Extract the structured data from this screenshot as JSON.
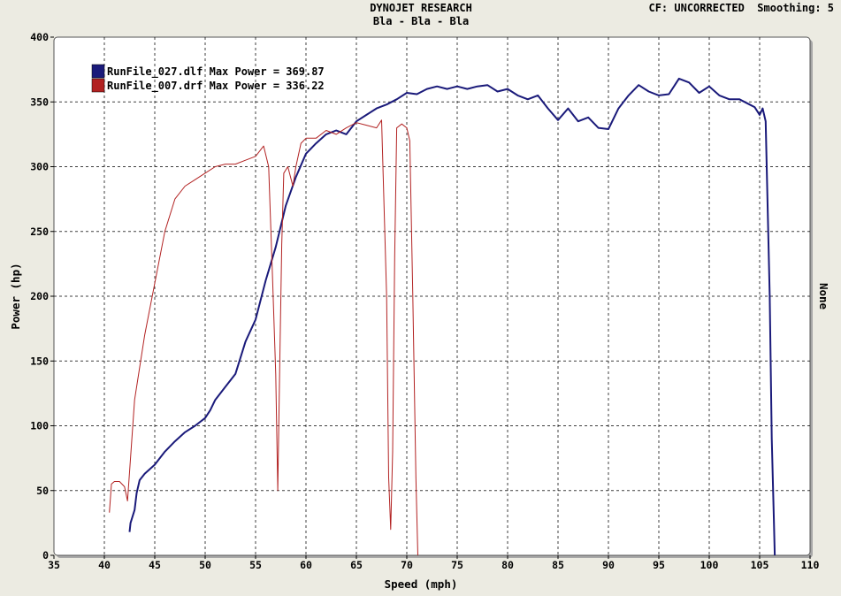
{
  "header": {
    "title": "DYNOJET RESEARCH",
    "subtitle": "Bla - Bla - Bla",
    "info": "CF: UNCORRECTED  Smoothing: 5"
  },
  "right_label": "None",
  "colors": {
    "series1": "#1a1a7a",
    "series2": "#b22222",
    "background": "#ecebe2",
    "plot": "#ffffff"
  },
  "chart_data": {
    "type": "line",
    "xlabel": "Speed (mph)",
    "ylabel": "Power (hp)",
    "xlim": [
      35,
      110
    ],
    "ylim": [
      0,
      400
    ],
    "xticks": [
      35,
      40,
      45,
      50,
      55,
      60,
      65,
      70,
      75,
      80,
      85,
      90,
      95,
      100,
      105,
      110
    ],
    "yticks": [
      0,
      50,
      100,
      150,
      200,
      250,
      300,
      350,
      400
    ],
    "grid": true,
    "legend_position": "top-left",
    "series": [
      {
        "name": "RunFile_027.dlf Max Power = 369.87",
        "color": "#1a1a7a",
        "x": [
          42.5,
          42.6,
          43.0,
          43.2,
          43.5,
          44.0,
          45.0,
          46.0,
          47.0,
          48.0,
          49.0,
          50.0,
          50.5,
          51.0,
          52.0,
          53.0,
          54.0,
          55.0,
          56.0,
          57.0,
          58.0,
          59.0,
          60.0,
          61.0,
          62.0,
          63.0,
          64.0,
          65.0,
          66.0,
          67.0,
          68.0,
          69.0,
          70.0,
          71.0,
          72.0,
          73.0,
          74.0,
          75.0,
          76.0,
          77.0,
          78.0,
          79.0,
          80.0,
          81.0,
          82.0,
          83.0,
          84.0,
          85.0,
          86.0,
          87.0,
          88.0,
          89.0,
          90.0,
          91.0,
          92.0,
          93.0,
          94.0,
          95.0,
          96.0,
          97.0,
          98.0,
          99.0,
          100.0,
          101.0,
          102.0,
          103.0,
          104.0,
          104.5,
          105.0,
          105.3,
          105.6,
          106.0,
          106.2,
          106.4,
          106.5
        ],
        "y": [
          18,
          25,
          35,
          48,
          58,
          63,
          70,
          80,
          88,
          95,
          100,
          106,
          112,
          120,
          130,
          140,
          165,
          182,
          212,
          238,
          270,
          292,
          310,
          318,
          325,
          328,
          325,
          335,
          340,
          345,
          348,
          352,
          357,
          356,
          360,
          362,
          360,
          362,
          360,
          362,
          363,
          358,
          360,
          355,
          352,
          355,
          345,
          336,
          345,
          335,
          338,
          330,
          329,
          345,
          355,
          363,
          358,
          355,
          356,
          368,
          365,
          357,
          362,
          355,
          352,
          352,
          348,
          346,
          340,
          345,
          335,
          200,
          90,
          30,
          0
        ]
      },
      {
        "name": "RunFile_007.drf Max Power = 336.22",
        "color": "#b22222",
        "x": [
          40.5,
          40.7,
          41.0,
          41.5,
          42.0,
          42.3,
          43.0,
          44.0,
          45.0,
          46.0,
          47.0,
          48.0,
          49.0,
          50.0,
          51.0,
          52.0,
          53.0,
          54.0,
          55.0,
          55.8,
          56.3,
          56.7,
          57.0,
          57.2,
          57.4,
          57.6,
          57.8,
          58.2,
          58.7,
          59.0,
          59.5,
          60.0,
          61.0,
          62.0,
          63.0,
          64.0,
          65.0,
          66.0,
          67.0,
          67.5,
          68.0,
          68.2,
          68.4,
          68.6,
          68.8,
          69.0,
          69.5,
          70.0,
          70.3,
          70.6,
          70.9,
          71.1
        ],
        "y": [
          33,
          55,
          57,
          57,
          53,
          42,
          120,
          170,
          210,
          250,
          275,
          285,
          290,
          295,
          300,
          302,
          302,
          305,
          308,
          316,
          300,
          210,
          140,
          50,
          150,
          240,
          295,
          300,
          285,
          300,
          318,
          322,
          322,
          328,
          325,
          330,
          334,
          332,
          330,
          336,
          200,
          60,
          20,
          80,
          230,
          330,
          333,
          330,
          320,
          200,
          60,
          0
        ]
      }
    ]
  }
}
